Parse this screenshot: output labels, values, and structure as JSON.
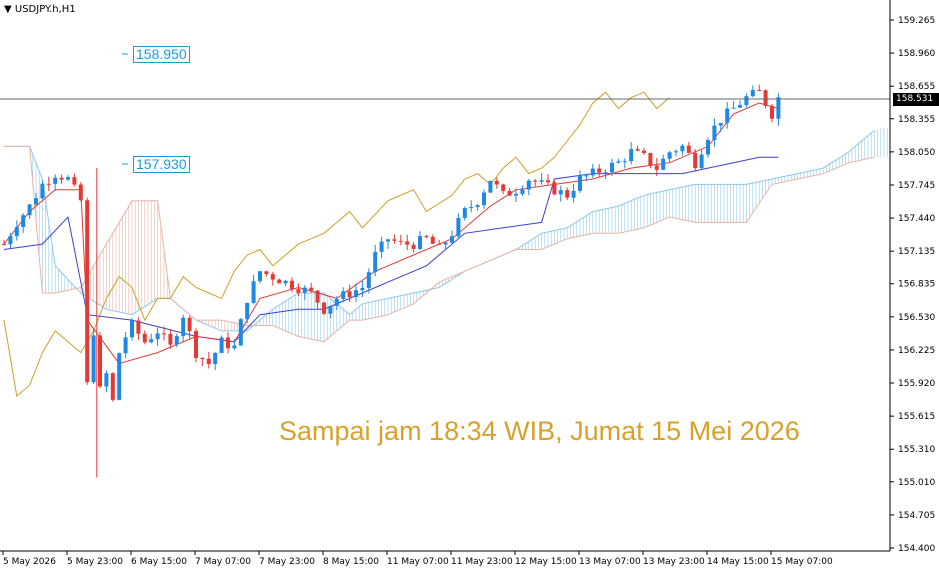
{
  "symbol": "USDJPY.h,H1",
  "levels": {
    "upper": "158.950",
    "lower": "157.930"
  },
  "annotation": "Sampai jam 18:34 WIB, Jumat 15 Mei 2026",
  "current_price": "158.531",
  "colors": {
    "bull": "#1e88e5",
    "bear": "#e53935",
    "tenkan": "#e53935",
    "kijun": "#3f3fcf",
    "chikou": "#c9a227",
    "cloud_bull": "#8ec8e8",
    "cloud_bear": "#e8b4a4",
    "level": "#1e9bd7",
    "annotation": "#d9a12a"
  },
  "chart_data": {
    "type": "candlestick",
    "title": "USDJPY.h,H1",
    "y_ticks": [
      "159.265",
      "158.960",
      "158.655",
      "158.355",
      "158.050",
      "157.745",
      "157.440",
      "157.135",
      "156.835",
      "156.530",
      "156.225",
      "155.920",
      "155.615",
      "155.310",
      "155.010",
      "154.705",
      "154.400"
    ],
    "x_ticks": [
      "5 May 2026",
      "5 May 23:00",
      "6 May 15:00",
      "7 May 07:00",
      "7 May 23:00",
      "8 May 15:00",
      "11 May 07:00",
      "11 May 23:00",
      "12 May 15:00",
      "13 May 07:00",
      "13 May 23:00",
      "14 May 15:00",
      "15 May 07:00"
    ],
    "ylim": [
      154.4,
      159.3
    ],
    "current_price": 158.531,
    "horizontal_levels": [
      158.95,
      157.93
    ],
    "path_points": {
      "close": [
        [
          0,
          157.2
        ],
        [
          2,
          157.4
        ],
        [
          4,
          157.55
        ],
        [
          6,
          157.75
        ],
        [
          8,
          157.85
        ],
        [
          10,
          157.8
        ],
        [
          12,
          157.6
        ],
        [
          13,
          155.9
        ],
        [
          14,
          156.4
        ],
        [
          15,
          155.85
        ],
        [
          16,
          156.0
        ],
        [
          17,
          155.75
        ],
        [
          18,
          156.2
        ],
        [
          19,
          156.35
        ],
        [
          20,
          156.45
        ],
        [
          22,
          156.3
        ],
        [
          24,
          156.4
        ],
        [
          26,
          156.25
        ],
        [
          28,
          156.55
        ],
        [
          30,
          156.2
        ],
        [
          32,
          156.1
        ],
        [
          34,
          156.3
        ],
        [
          36,
          156.25
        ],
        [
          38,
          156.7
        ],
        [
          40,
          156.95
        ],
        [
          42,
          156.9
        ],
        [
          44,
          156.85
        ],
        [
          46,
          156.8
        ],
        [
          48,
          156.75
        ],
        [
          50,
          156.6
        ],
        [
          52,
          156.7
        ],
        [
          54,
          156.75
        ],
        [
          56,
          156.8
        ],
        [
          58,
          157.1
        ],
        [
          60,
          157.25
        ],
        [
          62,
          157.2
        ],
        [
          64,
          157.2
        ],
        [
          66,
          157.25
        ],
        [
          68,
          157.15
        ],
        [
          70,
          157.3
        ],
        [
          72,
          157.5
        ],
        [
          74,
          157.6
        ],
        [
          76,
          157.8
        ],
        [
          78,
          157.65
        ],
        [
          80,
          157.7
        ],
        [
          82,
          157.8
        ],
        [
          84,
          157.75
        ],
        [
          86,
          157.7
        ],
        [
          88,
          157.65
        ],
        [
          90,
          157.8
        ],
        [
          92,
          157.85
        ],
        [
          94,
          157.9
        ],
        [
          96,
          157.95
        ],
        [
          98,
          158.05
        ],
        [
          100,
          158.0
        ],
        [
          102,
          157.9
        ],
        [
          104,
          158.05
        ],
        [
          106,
          158.1
        ],
        [
          108,
          157.95
        ],
        [
          110,
          158.2
        ],
        [
          112,
          158.35
        ],
        [
          114,
          158.45
        ],
        [
          116,
          158.55
        ],
        [
          118,
          158.6
        ],
        [
          120,
          158.4
        ],
        [
          121,
          158.55
        ]
      ],
      "tenkan": [
        [
          0,
          157.2
        ],
        [
          4,
          157.5
        ],
        [
          8,
          157.7
        ],
        [
          12,
          157.7
        ],
        [
          13,
          156.5
        ],
        [
          18,
          156.1
        ],
        [
          24,
          156.2
        ],
        [
          30,
          156.35
        ],
        [
          36,
          156.3
        ],
        [
          40,
          156.7
        ],
        [
          46,
          156.8
        ],
        [
          52,
          156.7
        ],
        [
          58,
          156.95
        ],
        [
          64,
          157.1
        ],
        [
          70,
          157.25
        ],
        [
          76,
          157.55
        ],
        [
          80,
          157.7
        ],
        [
          86,
          157.75
        ],
        [
          92,
          157.8
        ],
        [
          98,
          157.9
        ],
        [
          104,
          157.95
        ],
        [
          110,
          158.1
        ],
        [
          114,
          158.4
        ],
        [
          118,
          158.5
        ],
        [
          121,
          158.45
        ]
      ],
      "kijun": [
        [
          0,
          157.15
        ],
        [
          6,
          157.2
        ],
        [
          10,
          157.45
        ],
        [
          13,
          156.55
        ],
        [
          20,
          156.5
        ],
        [
          30,
          156.35
        ],
        [
          36,
          156.3
        ],
        [
          40,
          156.55
        ],
        [
          46,
          156.6
        ],
        [
          50,
          156.6
        ],
        [
          56,
          156.75
        ],
        [
          60,
          156.85
        ],
        [
          66,
          157.0
        ],
        [
          72,
          157.3
        ],
        [
          78,
          157.35
        ],
        [
          84,
          157.4
        ],
        [
          86,
          157.8
        ],
        [
          92,
          157.85
        ],
        [
          100,
          157.85
        ],
        [
          106,
          157.85
        ],
        [
          110,
          157.9
        ],
        [
          114,
          157.95
        ],
        [
          118,
          158.0
        ],
        [
          121,
          158.0
        ]
      ],
      "chikou": [
        [
          0,
          156.5
        ],
        [
          2,
          155.8
        ],
        [
          4,
          155.9
        ],
        [
          6,
          156.2
        ],
        [
          8,
          156.4
        ],
        [
          10,
          156.3
        ],
        [
          12,
          156.2
        ],
        [
          14,
          156.4
        ],
        [
          16,
          156.7
        ],
        [
          18,
          156.9
        ],
        [
          20,
          156.8
        ],
        [
          22,
          156.5
        ],
        [
          24,
          156.7
        ],
        [
          26,
          156.7
        ],
        [
          28,
          156.9
        ],
        [
          30,
          156.8
        ],
        [
          32,
          156.75
        ],
        [
          34,
          156.7
        ],
        [
          36,
          156.95
        ],
        [
          38,
          157.1
        ],
        [
          40,
          157.15
        ],
        [
          42,
          157.0
        ],
        [
          46,
          157.2
        ],
        [
          50,
          157.3
        ],
        [
          54,
          157.5
        ],
        [
          56,
          157.35
        ],
        [
          60,
          157.6
        ],
        [
          64,
          157.7
        ],
        [
          66,
          157.5
        ],
        [
          70,
          157.65
        ],
        [
          72,
          157.8
        ],
        [
          74,
          157.85
        ],
        [
          76,
          157.75
        ],
        [
          78,
          157.9
        ],
        [
          80,
          158.0
        ],
        [
          82,
          157.85
        ],
        [
          84,
          157.9
        ],
        [
          86,
          158.0
        ],
        [
          88,
          158.15
        ],
        [
          90,
          158.3
        ],
        [
          92,
          158.5
        ],
        [
          94,
          158.6
        ],
        [
          96,
          158.45
        ],
        [
          98,
          158.55
        ],
        [
          100,
          158.6
        ],
        [
          102,
          158.45
        ],
        [
          104,
          158.55
        ]
      ],
      "senkou_a": [
        [
          0,
          158.1
        ],
        [
          4,
          158.1
        ],
        [
          6,
          157.8
        ],
        [
          8,
          157.0
        ],
        [
          12,
          156.75
        ],
        [
          16,
          156.6
        ],
        [
          20,
          156.55
        ],
        [
          24,
          156.7
        ],
        [
          26,
          156.7
        ],
        [
          30,
          156.5
        ],
        [
          34,
          156.4
        ],
        [
          38,
          156.4
        ],
        [
          42,
          156.6
        ],
        [
          46,
          156.75
        ],
        [
          50,
          156.75
        ],
        [
          54,
          156.55
        ],
        [
          56,
          156.65
        ],
        [
          60,
          156.7
        ],
        [
          64,
          156.75
        ],
        [
          68,
          156.8
        ],
        [
          72,
          156.95
        ],
        [
          76,
          157.05
        ],
        [
          80,
          157.15
        ],
        [
          84,
          157.3
        ],
        [
          88,
          157.35
        ],
        [
          92,
          157.5
        ],
        [
          96,
          157.55
        ],
        [
          100,
          157.65
        ],
        [
          104,
          157.7
        ],
        [
          108,
          157.75
        ],
        [
          112,
          157.75
        ],
        [
          116,
          157.75
        ],
        [
          120,
          157.8
        ],
        [
          124,
          157.85
        ],
        [
          128,
          157.9
        ],
        [
          132,
          158.05
        ],
        [
          136,
          158.25
        ],
        [
          140,
          158.3
        ]
      ],
      "senkou_b": [
        [
          0,
          158.1
        ],
        [
          4,
          158.1
        ],
        [
          6,
          156.75
        ],
        [
          8,
          156.75
        ],
        [
          12,
          156.8
        ],
        [
          16,
          157.2
        ],
        [
          20,
          157.6
        ],
        [
          24,
          157.6
        ],
        [
          26,
          156.7
        ],
        [
          30,
          156.5
        ],
        [
          34,
          156.5
        ],
        [
          38,
          156.45
        ],
        [
          42,
          156.45
        ],
        [
          46,
          156.35
        ],
        [
          50,
          156.3
        ],
        [
          54,
          156.5
        ],
        [
          56,
          156.5
        ],
        [
          60,
          156.55
        ],
        [
          64,
          156.65
        ],
        [
          68,
          156.85
        ],
        [
          72,
          156.95
        ],
        [
          76,
          157.05
        ],
        [
          80,
          157.15
        ],
        [
          84,
          157.15
        ],
        [
          88,
          157.25
        ],
        [
          92,
          157.3
        ],
        [
          96,
          157.3
        ],
        [
          100,
          157.35
        ],
        [
          104,
          157.45
        ],
        [
          108,
          157.4
        ],
        [
          112,
          157.4
        ],
        [
          116,
          157.4
        ],
        [
          120,
          157.75
        ],
        [
          124,
          157.8
        ],
        [
          128,
          157.85
        ],
        [
          132,
          157.95
        ],
        [
          136,
          158.0
        ],
        [
          140,
          158.0
        ]
      ]
    },
    "series": [
      {
        "name": "",
        "values": []
      }
    ]
  }
}
